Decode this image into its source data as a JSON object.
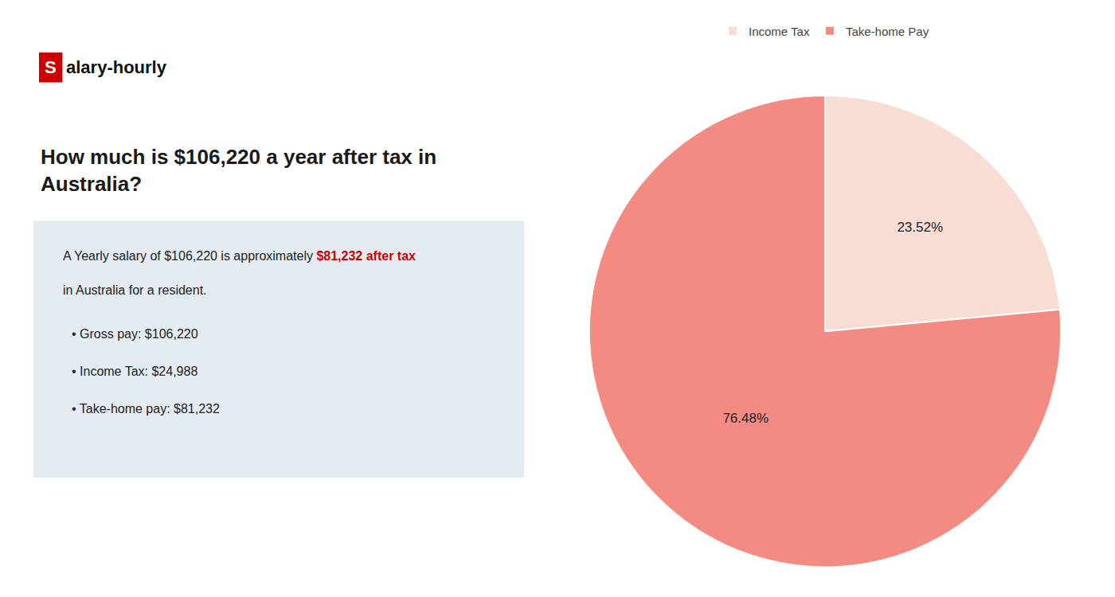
{
  "chart_data": {
    "type": "pie",
    "title": "How much is $106,220 a year after tax in Australia?",
    "categories": [
      "Income Tax",
      "Take-home Pay"
    ],
    "values": [
      23.52,
      76.48
    ],
    "value_labels": [
      "23.52%",
      "76.48%"
    ],
    "data_labels": true,
    "colors": [
      "#f7ddd3",
      "#f48b82"
    ],
    "legend": "top",
    "annotations": [
      [
        {
          "text": "S",
          "color": "#cc0000"
        },
        {
          "text": "alary-hourly"
        }
      ],
      [
        {
          "text": "A Yearly salary of $106,220 is approximately "
        },
        {
          "text": "$81,232 after tax",
          "color": "#cc0000"
        }
      ],
      [
        {
          "text": "in Australia for a resident."
        }
      ],
      [
        {
          "text": "• Gross pay: $106,220"
        }
      ],
      [
        {
          "text": "• Income Tax: $24,988"
        }
      ],
      [
        {
          "text": "• Take-home pay: $81,232"
        }
      ]
    ]
  }
}
